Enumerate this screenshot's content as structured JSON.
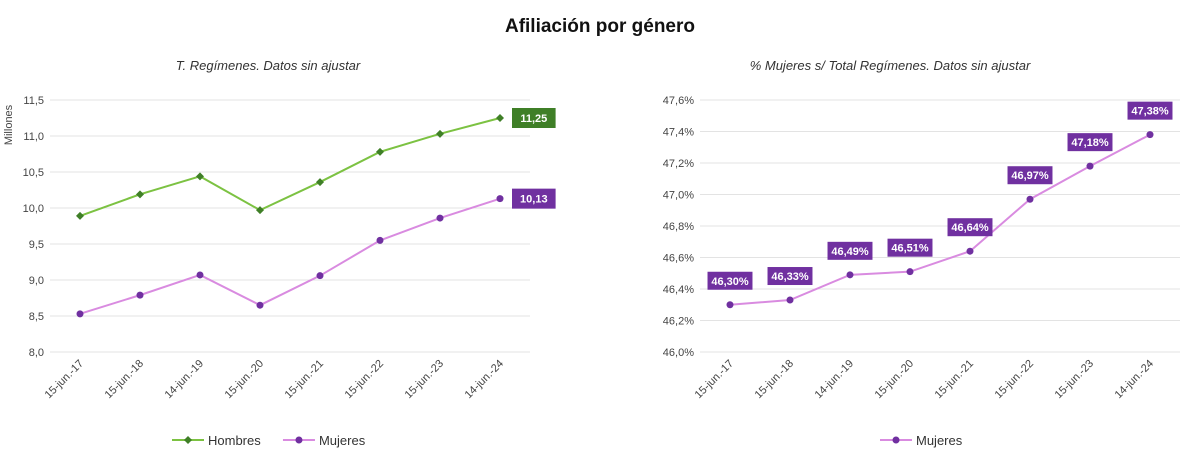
{
  "page": {
    "title": "Afiliación por género"
  },
  "chart_data": [
    {
      "type": "line",
      "title": "T. Regímenes. Datos sin ajustar",
      "ylabel": "Millones",
      "xlabel": "",
      "categories": [
        "15-jun.-17",
        "15-jun.-18",
        "14-jun.-19",
        "15-jun.-20",
        "15-jun.-21",
        "15-jun.-22",
        "15-jun.-23",
        "14-jun.-24"
      ],
      "ylim": [
        8.0,
        11.5
      ],
      "yticks": [
        "8,0",
        "8,5",
        "9,0",
        "9,5",
        "10,0",
        "10,5",
        "11,0",
        "11,5"
      ],
      "grid": true,
      "legend": "bottom",
      "series": [
        {
          "name": "Hombres",
          "color": "#7cc242",
          "marker": "diamond",
          "values": [
            9.89,
            10.19,
            10.44,
            9.97,
            10.36,
            10.78,
            11.03,
            11.25
          ],
          "end_label": "11,25",
          "end_label_color": "#3f7f27"
        },
        {
          "name": "Mujeres",
          "color": "#d98be0",
          "marker": "circle",
          "marker_color": "#7030a0",
          "values": [
            8.53,
            8.79,
            9.07,
            8.65,
            9.06,
            9.55,
            9.86,
            10.13
          ],
          "end_label": "10,13",
          "end_label_color": "#7030a0"
        }
      ]
    },
    {
      "type": "line",
      "title": "% Mujeres s/ Total Regímenes. Datos sin ajustar",
      "xlabel": "",
      "ylabel": "",
      "categories": [
        "15-jun.-17",
        "15-jun.-18",
        "14-jun.-19",
        "15-jun.-20",
        "15-jun.-21",
        "15-jun.-22",
        "15-jun.-23",
        "14-jun.-24"
      ],
      "ylim": [
        46.0,
        47.6
      ],
      "yticks": [
        "46,0%",
        "46,2%",
        "46,4%",
        "46,6%",
        "46,8%",
        "47,0%",
        "47,2%",
        "47,4%",
        "47,6%"
      ],
      "grid": true,
      "legend": "bottom",
      "series": [
        {
          "name": "Mujeres",
          "color": "#d98be0",
          "marker": "circle",
          "marker_color": "#7030a0",
          "label_color": "#7030a0",
          "values": [
            46.3,
            46.33,
            46.49,
            46.51,
            46.64,
            46.97,
            47.18,
            47.38
          ],
          "labels": [
            "46,30%",
            "46,33%",
            "46,49%",
            "46,51%",
            "46,64%",
            "46,97%",
            "47,18%",
            "47,38%"
          ]
        }
      ]
    }
  ]
}
